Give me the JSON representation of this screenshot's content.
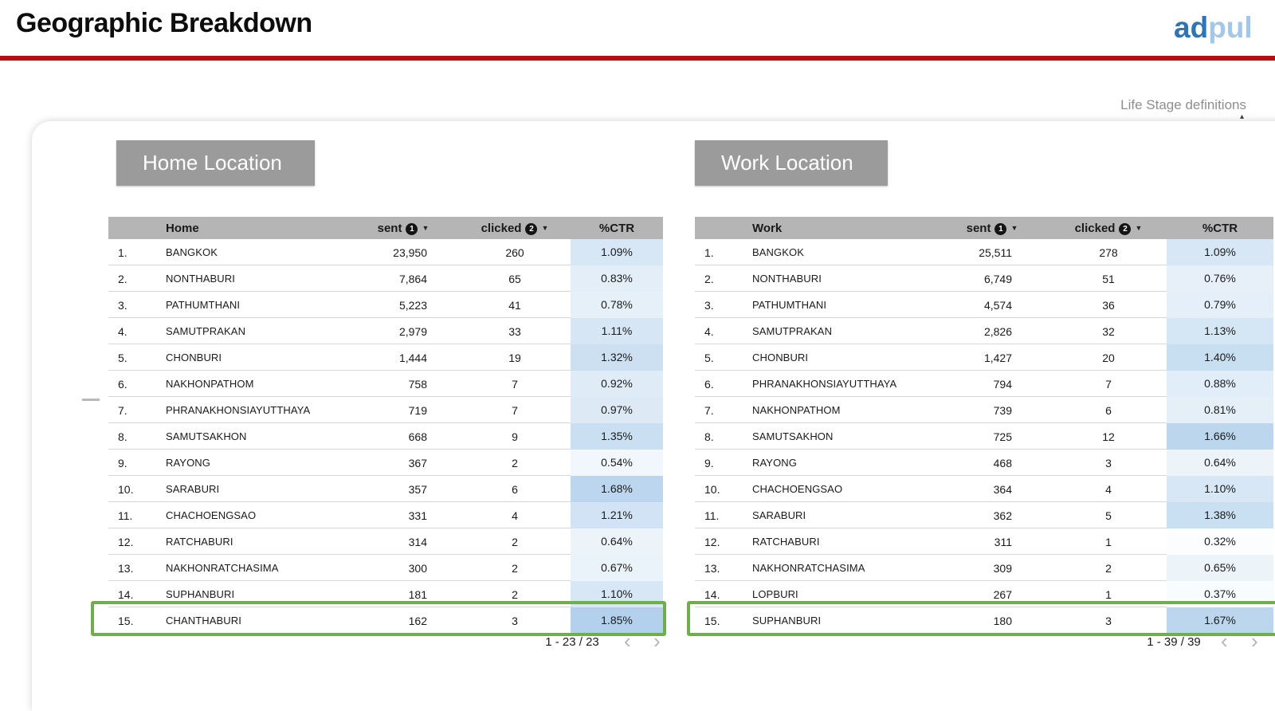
{
  "header": {
    "title": "Geographic Breakdown",
    "logo": {
      "part1": "ad",
      "part2": "pul"
    }
  },
  "links": {
    "life_stage": "Life Stage definitions"
  },
  "tables": [
    {
      "section_label": "Home Location",
      "columns": {
        "name": "Home",
        "sent": "sent",
        "clicked": "clicked",
        "ctr": "%CTR"
      },
      "sort_badges": {
        "sent": "1",
        "clicked": "2"
      },
      "rows": [
        {
          "rank": "1.",
          "name": "BANGKOK",
          "sent": "23,950",
          "clicked": "260",
          "ctr": "1.09%"
        },
        {
          "rank": "2.",
          "name": "NONTHABURI",
          "sent": "7,864",
          "clicked": "65",
          "ctr": "0.83%"
        },
        {
          "rank": "3.",
          "name": "PATHUMTHANI",
          "sent": "5,223",
          "clicked": "41",
          "ctr": "0.78%"
        },
        {
          "rank": "4.",
          "name": "SAMUTPRAKAN",
          "sent": "2,979",
          "clicked": "33",
          "ctr": "1.11%"
        },
        {
          "rank": "5.",
          "name": "CHONBURI",
          "sent": "1,444",
          "clicked": "19",
          "ctr": "1.32%"
        },
        {
          "rank": "6.",
          "name": "NAKHONPATHOM",
          "sent": "758",
          "clicked": "7",
          "ctr": "0.92%"
        },
        {
          "rank": "7.",
          "name": "PHRANAKHONSIAYUTTHAYA",
          "sent": "719",
          "clicked": "7",
          "ctr": "0.97%"
        },
        {
          "rank": "8.",
          "name": "SAMUTSAKHON",
          "sent": "668",
          "clicked": "9",
          "ctr": "1.35%"
        },
        {
          "rank": "9.",
          "name": "RAYONG",
          "sent": "367",
          "clicked": "2",
          "ctr": "0.54%"
        },
        {
          "rank": "10.",
          "name": "SARABURI",
          "sent": "357",
          "clicked": "6",
          "ctr": "1.68%"
        },
        {
          "rank": "11.",
          "name": "CHACHOENGSAO",
          "sent": "331",
          "clicked": "4",
          "ctr": "1.21%"
        },
        {
          "rank": "12.",
          "name": "RATCHABURI",
          "sent": "314",
          "clicked": "2",
          "ctr": "0.64%"
        },
        {
          "rank": "13.",
          "name": "NAKHONRATCHASIMA",
          "sent": "300",
          "clicked": "2",
          "ctr": "0.67%"
        },
        {
          "rank": "14.",
          "name": "SUPHANBURI",
          "sent": "181",
          "clicked": "2",
          "ctr": "1.10%"
        },
        {
          "rank": "15.",
          "name": "CHANTHABURI",
          "sent": "162",
          "clicked": "3",
          "ctr": "1.85%"
        }
      ],
      "highlight_row_index": 14,
      "pagination": {
        "range": "1 - 23 / 23"
      }
    },
    {
      "section_label": "Work Location",
      "columns": {
        "name": "Work",
        "sent": "sent",
        "clicked": "clicked",
        "ctr": "%CTR"
      },
      "sort_badges": {
        "sent": "1",
        "clicked": "2"
      },
      "rows": [
        {
          "rank": "1.",
          "name": "BANGKOK",
          "sent": "25,511",
          "clicked": "278",
          "ctr": "1.09%"
        },
        {
          "rank": "2.",
          "name": "NONTHABURI",
          "sent": "6,749",
          "clicked": "51",
          "ctr": "0.76%"
        },
        {
          "rank": "3.",
          "name": "PATHUMTHANI",
          "sent": "4,574",
          "clicked": "36",
          "ctr": "0.79%"
        },
        {
          "rank": "4.",
          "name": "SAMUTPRAKAN",
          "sent": "2,826",
          "clicked": "32",
          "ctr": "1.13%"
        },
        {
          "rank": "5.",
          "name": "CHONBURI",
          "sent": "1,427",
          "clicked": "20",
          "ctr": "1.40%"
        },
        {
          "rank": "6.",
          "name": "PHRANAKHONSIAYUTTHAYA",
          "sent": "794",
          "clicked": "7",
          "ctr": "0.88%"
        },
        {
          "rank": "7.",
          "name": "NAKHONPATHOM",
          "sent": "739",
          "clicked": "6",
          "ctr": "0.81%"
        },
        {
          "rank": "8.",
          "name": "SAMUTSAKHON",
          "sent": "725",
          "clicked": "12",
          "ctr": "1.66%"
        },
        {
          "rank": "9.",
          "name": "RAYONG",
          "sent": "468",
          "clicked": "3",
          "ctr": "0.64%"
        },
        {
          "rank": "10.",
          "name": "CHACHOENGSAO",
          "sent": "364",
          "clicked": "4",
          "ctr": "1.10%"
        },
        {
          "rank": "11.",
          "name": "SARABURI",
          "sent": "362",
          "clicked": "5",
          "ctr": "1.38%"
        },
        {
          "rank": "12.",
          "name": "RATCHABURI",
          "sent": "311",
          "clicked": "1",
          "ctr": "0.32%"
        },
        {
          "rank": "13.",
          "name": "NAKHONRATCHASIMA",
          "sent": "309",
          "clicked": "2",
          "ctr": "0.65%"
        },
        {
          "rank": "14.",
          "name": "LOPBURI",
          "sent": "267",
          "clicked": "1",
          "ctr": "0.37%"
        },
        {
          "rank": "15.",
          "name": "SUPHANBURI",
          "sent": "180",
          "clicked": "3",
          "ctr": "1.67%"
        }
      ],
      "highlight_row_index": 14,
      "pagination": {
        "range": "1 - 39 / 39"
      }
    }
  ],
  "colors": {
    "accent_red": "#b80d0d",
    "green_highlight": "#6fae4a",
    "ctr_heat_max": "#b3d1ec",
    "label_gray": "#9b9b9b",
    "table_header_gray": "#b5b5b5",
    "logo_blue_dark": "#2f74b5",
    "logo_blue_light": "#a3c7e8"
  }
}
